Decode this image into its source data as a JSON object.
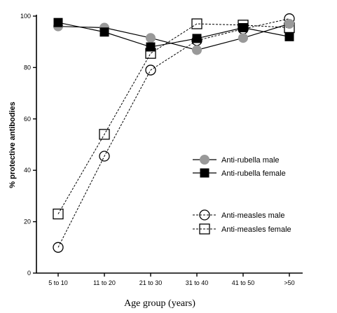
{
  "chart_data": {
    "type": "line",
    "title": "",
    "xlabel": "Age group (years)",
    "ylabel": "% protective antibodies",
    "categories": [
      "5 to 10",
      "11 to 20",
      "21 to 30",
      "31 to 40",
      "41 to 50",
      ">50"
    ],
    "ylim": [
      0,
      100
    ],
    "yticks": [
      "0",
      "20",
      "40",
      "60",
      "80",
      "100"
    ],
    "grid": false,
    "legend_position": "right",
    "series": [
      {
        "name": "Anti-rubella male",
        "marker": "filled-circle",
        "line": "solid",
        "color": "#999999",
        "values": [
          96,
          95.5,
          91.5,
          86.8,
          91.5,
          97
        ]
      },
      {
        "name": "Anti-rubella female",
        "marker": "filled-square",
        "line": "solid",
        "color": "#000000",
        "values": [
          97.5,
          93.8,
          88,
          91.3,
          95.5,
          92
        ]
      },
      {
        "name": "Anti-measles male",
        "marker": "open-circle",
        "line": "dashed",
        "color": "#000000",
        "values": [
          10,
          45.5,
          79,
          90.5,
          95,
          99
        ]
      },
      {
        "name": "Anti-measles female",
        "marker": "open-square",
        "line": "dashed",
        "color": "#000000",
        "values": [
          23,
          54,
          85.5,
          97,
          96.5,
          95.5
        ]
      }
    ]
  }
}
